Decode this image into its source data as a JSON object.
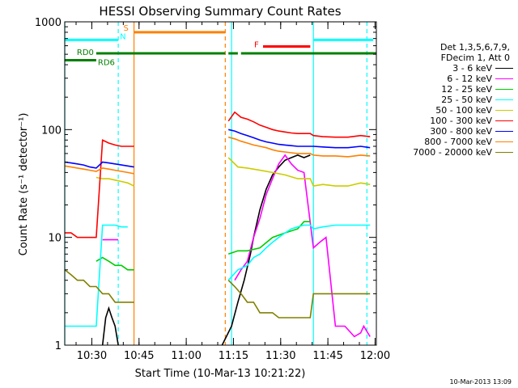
{
  "chart_data": {
    "type": "line",
    "title": "HESSI Observing Summary Count Rates",
    "xlabel": "Start Time (10-Mar-13 10:21:22)",
    "ylabel": "Count Rate (s⁻¹ detector⁻¹)",
    "y_scale": "log",
    "ylim": [
      1,
      1000
    ],
    "y_ticks": [
      1,
      10,
      100,
      1000
    ],
    "y_tick_labels": [
      "1",
      "10",
      "100",
      "1000"
    ],
    "x_unit": "minutes since 10:21:22",
    "xlim": [
      0,
      99
    ],
    "x_ticks": [
      8.6,
      23.6,
      38.6,
      53.6,
      68.6,
      83.6,
      98.6
    ],
    "x_tick_labels": [
      "10:30",
      "10:45",
      "11:00",
      "11:15",
      "11:30",
      "11:45",
      "12:00"
    ],
    "legend_header": [
      "Det 1,3,5,6,7,9,",
      "FDecim 1, Att 0"
    ],
    "legend_placement": "right",
    "series": [
      {
        "name": "3 - 6 keV",
        "color": "#000000",
        "x": [
          0,
          12,
          13,
          14,
          15,
          16,
          17,
          50,
          53,
          55,
          57,
          59,
          60,
          62,
          64,
          66,
          68,
          70,
          72,
          74,
          76,
          78
        ],
        "y": [
          1,
          1,
          1.8,
          2.2,
          1.8,
          1.5,
          1,
          1,
          1.5,
          2.5,
          4,
          7,
          10,
          18,
          28,
          38,
          45,
          52,
          55,
          58,
          55,
          58
        ]
      },
      {
        "name": "6 - 12 keV",
        "color": "#ff00ff",
        "x": [
          12,
          14,
          16,
          17,
          54,
          56,
          58,
          60,
          62,
          64,
          66,
          68,
          70,
          72,
          74,
          76,
          79,
          81,
          83,
          86,
          89,
          92,
          94,
          95,
          97
        ],
        "y": [
          9.5,
          9.5,
          9.5,
          9.5,
          4,
          5,
          6,
          10,
          15,
          25,
          35,
          48,
          58,
          48,
          42,
          40,
          8,
          9,
          10,
          1.5,
          1.5,
          1.2,
          1.3,
          1.5,
          1.2
        ]
      },
      {
        "name": "12 - 25 keV",
        "color": "#00cc00",
        "x": [
          10,
          12,
          14,
          16,
          18,
          20,
          22,
          52,
          55,
          58,
          62,
          66,
          70,
          74,
          76,
          78
        ],
        "y": [
          6,
          6.5,
          6,
          5.5,
          5.5,
          5,
          5,
          7,
          7.5,
          7.5,
          8,
          10,
          11,
          12,
          14,
          14
        ]
      },
      {
        "name": "25 - 50 keV",
        "color": "#00ffff",
        "x": [
          0,
          2,
          4,
          6,
          8,
          10,
          12,
          14,
          16,
          18,
          20,
          52,
          55,
          58,
          60,
          62,
          64,
          66,
          68,
          70,
          72,
          74,
          76,
          78,
          79,
          82,
          86,
          90,
          94,
          97
        ],
        "y": [
          1.5,
          1.5,
          1.5,
          1.5,
          1.5,
          1.5,
          13,
          13,
          13,
          12.5,
          12.5,
          4,
          5,
          5.5,
          6.5,
          7,
          8,
          9,
          10,
          11,
          12,
          12.5,
          13,
          13,
          12,
          12.5,
          13,
          13,
          13,
          13
        ]
      },
      {
        "name": "50 - 100 keV",
        "color": "#cccc00",
        "x": [
          10,
          12,
          14,
          16,
          18,
          20,
          22,
          52,
          55,
          58,
          62,
          66,
          70,
          74,
          78,
          79,
          82,
          86,
          90,
          94,
          97
        ],
        "y": [
          36,
          35,
          35,
          34,
          33,
          32,
          30,
          55,
          45,
          44,
          42,
          40,
          38,
          35,
          35,
          30,
          31,
          30,
          30,
          32,
          31
        ]
      },
      {
        "name": "100 - 300 keV",
        "color": "#ff0000",
        "x": [
          0,
          2,
          4,
          6,
          8,
          10,
          12,
          14,
          16,
          18,
          20,
          22,
          52,
          54,
          56,
          58,
          60,
          62,
          64,
          66,
          68,
          70,
          72,
          74,
          76,
          78,
          79,
          82,
          86,
          90,
          94,
          97
        ],
        "y": [
          11,
          11,
          10,
          10,
          10,
          10,
          80,
          75,
          72,
          70,
          70,
          70,
          120,
          145,
          130,
          125,
          118,
          110,
          105,
          100,
          97,
          95,
          93,
          92,
          92,
          92,
          88,
          86,
          85,
          85,
          88,
          86
        ]
      },
      {
        "name": "300 - 800 keV",
        "color": "#0000ff",
        "x": [
          0,
          2,
          4,
          6,
          8,
          10,
          12,
          14,
          16,
          18,
          20,
          22,
          52,
          54,
          56,
          58,
          60,
          62,
          64,
          66,
          68,
          70,
          72,
          74,
          76,
          78,
          79,
          82,
          86,
          90,
          94,
          97
        ],
        "y": [
          50,
          49,
          48,
          47,
          45,
          44,
          50,
          49,
          48,
          47,
          46,
          45,
          100,
          97,
          92,
          88,
          84,
          80,
          77,
          75,
          73,
          72,
          71,
          70,
          70,
          70,
          70,
          69,
          68,
          68,
          70,
          68
        ]
      },
      {
        "name": "800 - 7000 keV",
        "color": "#ff8000",
        "x": [
          0,
          2,
          4,
          6,
          8,
          10,
          12,
          14,
          16,
          18,
          20,
          22,
          52,
          54,
          56,
          58,
          60,
          62,
          64,
          66,
          68,
          70,
          72,
          74,
          76,
          78,
          79,
          82,
          86,
          90,
          94,
          97
        ],
        "y": [
          46,
          45,
          44,
          43,
          42,
          41,
          44,
          43,
          42,
          41,
          40,
          39,
          85,
          82,
          78,
          75,
          72,
          70,
          68,
          65,
          63,
          62,
          61,
          60,
          60,
          60,
          58,
          57,
          57,
          56,
          58,
          57
        ]
      },
      {
        "name": "7000 - 20000 keV",
        "color": "#808000",
        "x": [
          0,
          2,
          4,
          6,
          8,
          10,
          12,
          14,
          16,
          18,
          20,
          22,
          52,
          54,
          56,
          58,
          60,
          62,
          64,
          66,
          68,
          70,
          72,
          74,
          76,
          78,
          79,
          82,
          86,
          90,
          94,
          97
        ],
        "y": [
          5,
          4.5,
          4,
          4,
          3.5,
          3.5,
          3,
          3,
          2.5,
          2.5,
          2.5,
          2.5,
          4,
          3.5,
          3,
          2.5,
          2.5,
          2,
          2,
          2,
          1.8,
          1.8,
          1.8,
          1.8,
          1.8,
          1.8,
          3,
          3,
          3,
          3,
          3,
          3
        ]
      }
    ],
    "state_bars": [
      {
        "label": "S",
        "color": "#ff8000",
        "x_start": 22,
        "x_end": 51,
        "level": 800
      },
      {
        "label": "N",
        "color": "#00ffff",
        "x_start": 0,
        "x_end": 17,
        "level": 680
      },
      {
        "label": "",
        "color": "#00ffff",
        "x_start": 79,
        "x_end": 98,
        "level": 680
      },
      {
        "label": "F",
        "color": "#ff0000",
        "x_start": 63,
        "x_end": 78,
        "level": 590
      },
      {
        "label": "RD0",
        "color": "#008000",
        "x_start": 10,
        "x_end": 51,
        "level": 510
      },
      {
        "label": "",
        "color": "#008000",
        "x_start": 52,
        "x_end": 55,
        "level": 510
      },
      {
        "label": "",
        "color": "#008000",
        "x_start": 56,
        "x_end": 99,
        "level": 510
      },
      {
        "label": "RD6",
        "color": "#008000",
        "x_start": 0,
        "x_end": 10,
        "level": 440
      }
    ],
    "vertical_lines": [
      {
        "x": 22,
        "color": "#ff8000",
        "style": "solid"
      },
      {
        "x": 51,
        "color": "#ff8000",
        "style": "dashed"
      },
      {
        "x": 53,
        "color": "#00ffff",
        "style": "solid"
      },
      {
        "x": 17,
        "color": "#00ffff",
        "style": "dashed"
      },
      {
        "x": 79,
        "color": "#00ffff",
        "style": "solid"
      },
      {
        "x": 96,
        "color": "#00ffff",
        "style": "dashed"
      },
      {
        "x": 0,
        "color": "#00ffff",
        "style": "solid"
      }
    ]
  },
  "footer": {
    "date": "10-Mar-2013 13:09"
  }
}
